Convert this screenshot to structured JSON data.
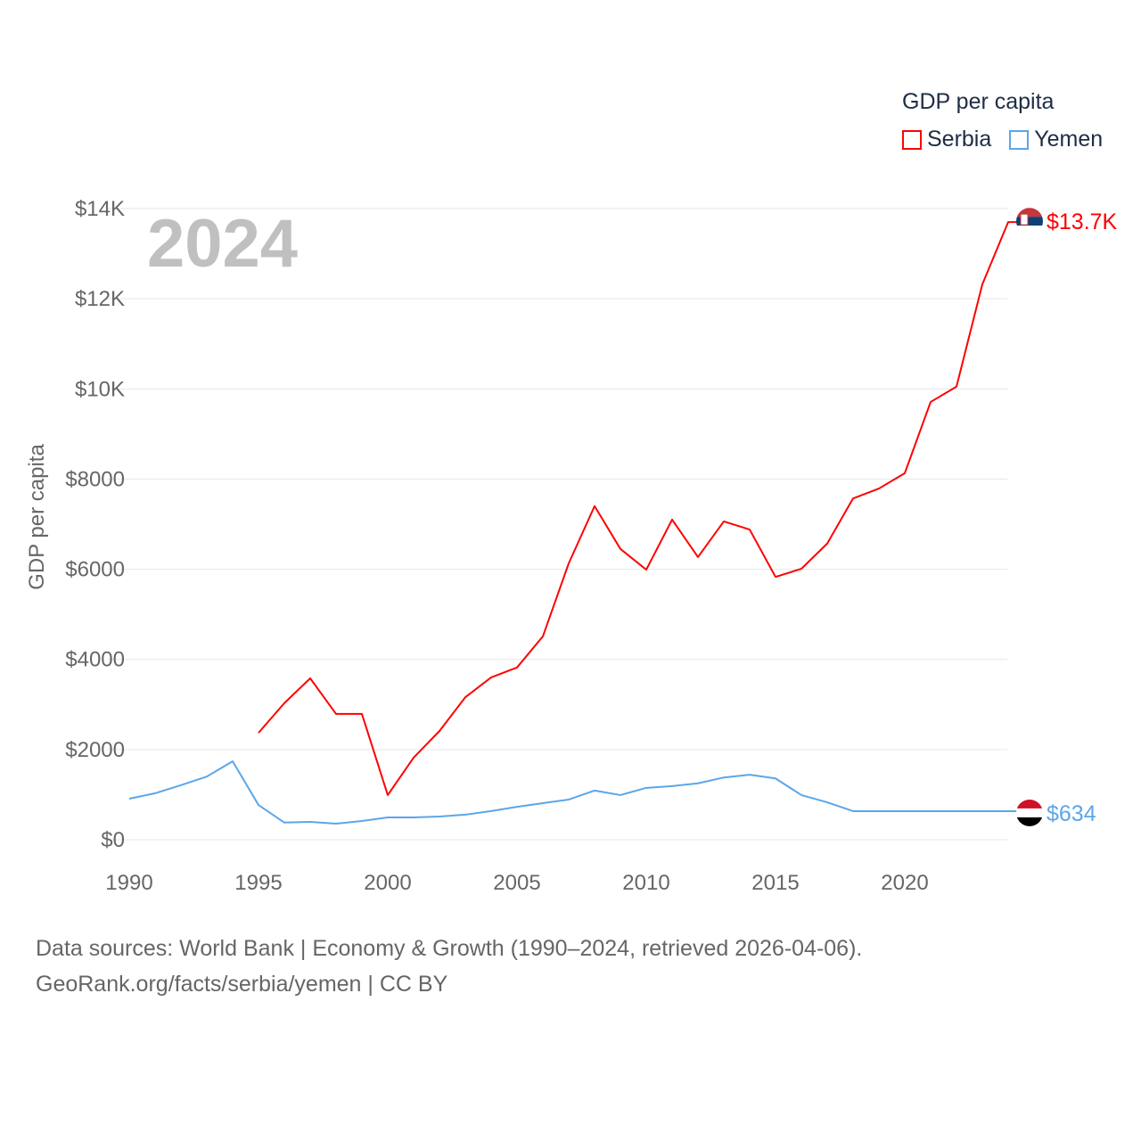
{
  "chart_data": {
    "type": "line",
    "title": "GDP per capita",
    "xlabel": "",
    "ylabel": "GDP per capita",
    "xlim": [
      1990,
      2024
    ],
    "ylim": [
      0,
      14000
    ],
    "grid": true,
    "legend_placement": "top-right",
    "year_label": "2024",
    "x_ticks": [
      "1990",
      "1995",
      "2000",
      "2005",
      "2010",
      "2015",
      "2020"
    ],
    "y_ticks": [
      "$0",
      "$2000",
      "$4000",
      "$6000",
      "$8000",
      "$10K",
      "$12K",
      "$14K"
    ],
    "series": [
      {
        "name": "Serbia",
        "color": "#ff0000",
        "end_label": "$13.7K",
        "x": [
          1995,
          1996,
          1997,
          1998,
          1999,
          2000,
          2001,
          2002,
          2003,
          2004,
          2005,
          2006,
          2007,
          2008,
          2009,
          2010,
          2011,
          2012,
          2013,
          2014,
          2015,
          2016,
          2017,
          2018,
          2019,
          2020,
          2021,
          2022,
          2023,
          2024
        ],
        "values": [
          2370,
          3030,
          3580,
          2790,
          2790,
          990,
          1820,
          2410,
          3160,
          3600,
          3820,
          4510,
          6130,
          7400,
          6450,
          5990,
          7100,
          6270,
          7060,
          6880,
          5830,
          6010,
          6570,
          7570,
          7790,
          8130,
          9710,
          10050,
          12320,
          13700
        ]
      },
      {
        "name": "Yemen",
        "color": "#5aa6ea",
        "end_label": "$634",
        "x": [
          1990,
          1991,
          1992,
          1993,
          1994,
          1995,
          1996,
          1997,
          1998,
          1999,
          2000,
          2001,
          2002,
          2003,
          2004,
          2005,
          2006,
          2007,
          2008,
          2009,
          2010,
          2011,
          2012,
          2013,
          2014,
          2015,
          2016,
          2017,
          2018,
          2019,
          2020,
          2021,
          2022,
          2023,
          2024
        ],
        "values": [
          910,
          1030,
          1210,
          1400,
          1740,
          770,
          380,
          395,
          355,
          415,
          495,
          495,
          515,
          555,
          635,
          730,
          810,
          890,
          1090,
          990,
          1150,
          1190,
          1250,
          1380,
          1440,
          1360,
          990,
          830,
          634,
          634,
          634,
          634,
          634,
          634,
          634
        ]
      }
    ],
    "source_line1": "Data sources: World Bank | Economy & Growth (1990–2024, retrieved 2026-04-06).",
    "source_line2": "GeoRank.org/facts/serbia/yemen | CC BY"
  }
}
